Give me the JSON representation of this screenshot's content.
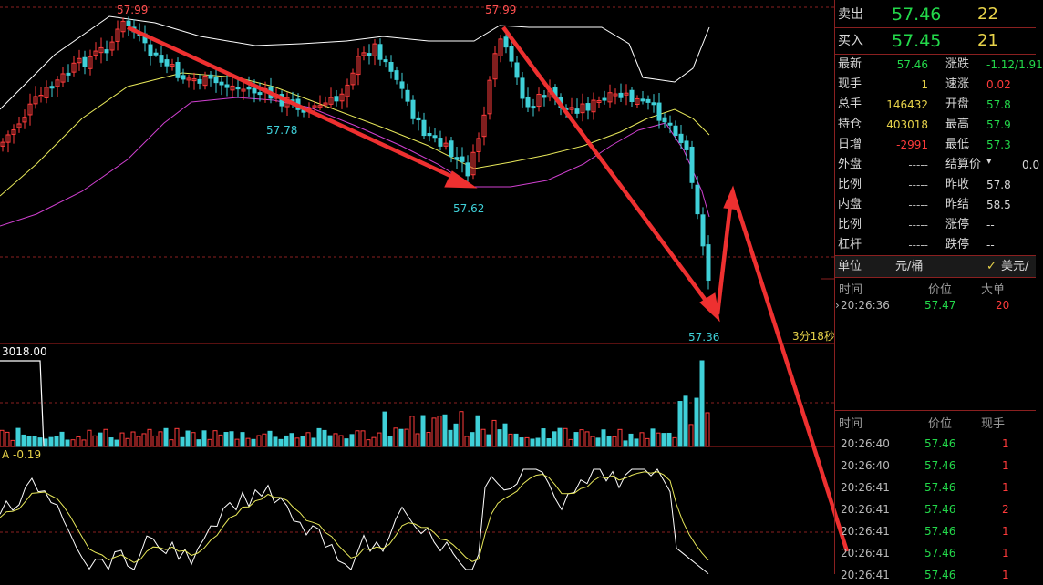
{
  "chart_data": {
    "type": "candlestick",
    "price_annotations": {
      "high_left": "57.99",
      "high_mid": "57.99",
      "low_a": "57.78",
      "low_b": "57.62",
      "low_c": "57.36"
    },
    "countdown": "3分18秒",
    "volume_axis_label": "3018.00",
    "macd_label": "A -0.19",
    "colors": {
      "up": "#ff3b3b",
      "down": "#3fd0d8",
      "ma_white": "#ffffff",
      "ma_yellow": "#e8e85a",
      "ma_magenta": "#d040d0",
      "arrow": "#ee3030",
      "grid": "#8a2020"
    }
  },
  "quote": {
    "ask": {
      "label": "卖出",
      "price": "57.46",
      "size": "22"
    },
    "bid": {
      "label": "买入",
      "price": "57.45",
      "size": "21"
    },
    "rows": [
      {
        "l1": "最新",
        "v1": "57.46",
        "l2": "涨跌",
        "v2": "-1.12/1.91"
      },
      {
        "l1": "现手",
        "v1": "1",
        "l2": "速涨",
        "v2": "0.02"
      },
      {
        "l1": "总手",
        "v1": "146432",
        "l2": "开盘",
        "v2": "57.8"
      },
      {
        "l1": "持仓",
        "v1": "403018",
        "l2": "最高",
        "v2": "57.9"
      },
      {
        "l1": "日增",
        "v1": "-2991",
        "l2": "最低",
        "v2": "57.3"
      },
      {
        "l1": "外盘",
        "v1": "-----",
        "l2": "结算价",
        "v2": "0.0"
      },
      {
        "l1": "比例",
        "v1": "-----",
        "l2": "昨收",
        "v2": "57.8"
      },
      {
        "l1": "内盘",
        "v1": "-----",
        "l2": "昨结",
        "v2": "58.5"
      },
      {
        "l1": "比例",
        "v1": "-----",
        "l2": "涨停",
        "v2": "--"
      },
      {
        "l1": "杠杆",
        "v1": "-----",
        "l2": "跌停",
        "v2": "--"
      }
    ],
    "unit": {
      "label": "单位",
      "value": "元/桶",
      "currency": "美元/"
    },
    "big_orders": {
      "headers": [
        "时间",
        "价位",
        "大单"
      ],
      "rows": [
        {
          "time": "20:26:36",
          "price": "57.47",
          "size": "20"
        }
      ]
    },
    "ticks": {
      "headers": [
        "时间",
        "价位",
        "现手"
      ],
      "rows": [
        {
          "time": "20:26:40",
          "price": "57.46",
          "size": "1"
        },
        {
          "time": "20:26:40",
          "price": "57.46",
          "size": "1"
        },
        {
          "time": "20:26:41",
          "price": "57.46",
          "size": "1"
        },
        {
          "time": "20:26:41",
          "price": "57.46",
          "size": "2"
        },
        {
          "time": "20:26:41",
          "price": "57.46",
          "size": "1"
        },
        {
          "time": "20:26:41",
          "price": "57.46",
          "size": "1"
        },
        {
          "time": "20:26:41",
          "price": "57.46",
          "size": "1"
        }
      ]
    }
  }
}
